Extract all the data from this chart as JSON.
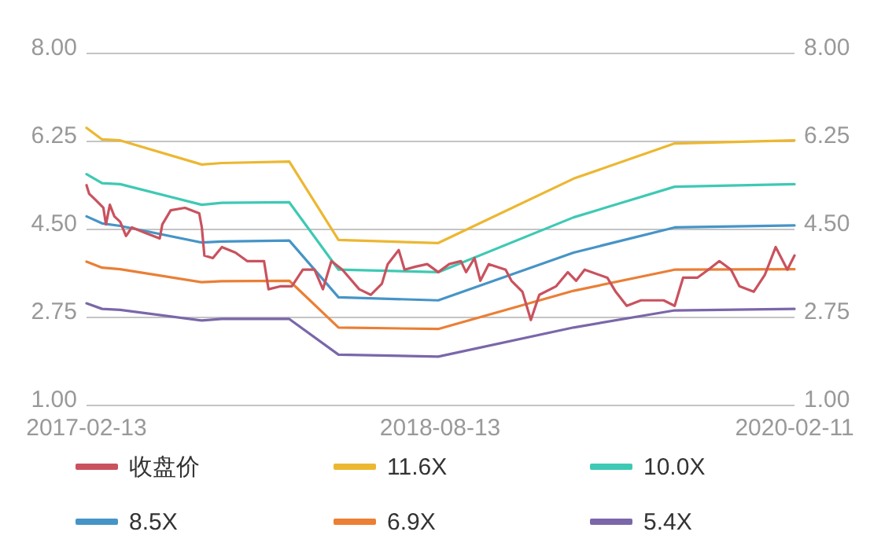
{
  "chart_data": {
    "type": "line",
    "x": [
      "2017-02-13",
      "2017-03-09",
      "2017-04-06",
      "2017-08-10",
      "2017-09-10",
      "2017-12-23",
      "2018-03-09",
      "2018-08-10",
      "2019-03-07",
      "2019-08-10",
      "2020-02-11"
    ],
    "series": [
      {
        "name": "收盘价",
        "color": "#c9525e",
        "x": [
          "2017-02-13",
          "2017-02-17",
          "2017-02-26",
          "2017-03-11",
          "2017-03-15",
          "2017-03-21",
          "2017-03-28",
          "2017-04-06",
          "2017-04-15",
          "2017-04-24",
          "2017-05-15",
          "2017-06-06",
          "2017-06-10",
          "2017-06-23",
          "2017-07-15",
          "2017-08-06",
          "2017-08-10",
          "2017-08-14",
          "2017-08-27",
          "2017-09-10",
          "2017-10-01",
          "2017-10-19",
          "2017-11-14",
          "2017-11-21",
          "2017-12-10",
          "2017-12-27",
          "2018-01-13",
          "2018-01-31",
          "2018-02-13",
          "2018-02-26",
          "2018-03-15",
          "2018-04-10",
          "2018-04-28",
          "2018-05-15",
          "2018-05-24",
          "2018-06-10",
          "2018-06-19",
          "2018-07-06",
          "2018-07-24",
          "2018-08-10",
          "2018-08-27",
          "2018-09-14",
          "2018-09-22",
          "2018-10-05",
          "2018-10-14",
          "2018-10-27",
          "2018-11-22",
          "2018-12-01",
          "2018-12-18",
          "2018-12-31",
          "2019-01-13",
          "2019-02-08",
          "2019-02-26",
          "2019-03-11",
          "2019-03-24",
          "2019-04-28",
          "2019-05-11",
          "2019-05-28",
          "2019-06-19",
          "2019-07-24",
          "2019-08-10",
          "2019-08-23",
          "2019-09-14",
          "2019-10-01",
          "2019-10-18",
          "2019-11-05",
          "2019-11-18",
          "2019-12-10",
          "2019-12-27",
          "2020-01-13",
          "2020-01-31",
          "2020-02-11"
        ],
        "values": [
          5.38,
          5.21,
          5.1,
          4.93,
          4.6,
          4.99,
          4.76,
          4.65,
          4.37,
          4.54,
          4.43,
          4.32,
          4.6,
          4.88,
          4.93,
          4.82,
          4.54,
          3.98,
          3.93,
          4.15,
          4.04,
          3.87,
          3.87,
          3.31,
          3.37,
          3.37,
          3.7,
          3.7,
          3.31,
          3.87,
          3.7,
          3.31,
          3.2,
          3.42,
          3.81,
          4.09,
          3.7,
          3.76,
          3.81,
          3.65,
          3.81,
          3.87,
          3.65,
          3.93,
          3.48,
          3.81,
          3.7,
          3.48,
          3.26,
          2.7,
          3.2,
          3.37,
          3.65,
          3.48,
          3.7,
          3.54,
          3.26,
          2.98,
          3.09,
          3.09,
          2.98,
          3.54,
          3.54,
          3.7,
          3.87,
          3.7,
          3.37,
          3.26,
          3.59,
          4.15,
          3.7,
          3.98
        ]
      },
      {
        "name": "11.6X",
        "color": "#ecb731",
        "values": [
          6.52,
          6.29,
          6.27,
          5.79,
          5.82,
          5.85,
          4.29,
          4.23,
          5.51,
          6.21,
          6.27
        ]
      },
      {
        "name": "10.0X",
        "color": "#3ec9b4",
        "values": [
          5.6,
          5.42,
          5.4,
          4.99,
          5.03,
          5.04,
          3.7,
          3.65,
          4.74,
          5.35,
          5.4
        ]
      },
      {
        "name": "8.5X",
        "color": "#4694c7",
        "values": [
          4.76,
          4.62,
          4.57,
          4.24,
          4.26,
          4.28,
          3.15,
          3.09,
          4.04,
          4.54,
          4.58
        ]
      },
      {
        "name": "6.9X",
        "color": "#ea7f35",
        "values": [
          3.86,
          3.74,
          3.71,
          3.45,
          3.47,
          3.48,
          2.55,
          2.52,
          3.28,
          3.7,
          3.71
        ]
      },
      {
        "name": "5.4X",
        "color": "#7a67a9",
        "values": [
          3.03,
          2.92,
          2.9,
          2.69,
          2.72,
          2.72,
          2.01,
          1.97,
          2.55,
          2.89,
          2.92
        ]
      }
    ],
    "xlim": [
      "2017-02-13",
      "2020-02-11"
    ],
    "xticks": [
      {
        "value": "2017-02-13",
        "label": "2017-02-13"
      },
      {
        "value": "2018-08-13",
        "label": "2018-08-13"
      },
      {
        "value": "2020-02-11",
        "label": "2020-02-11"
      }
    ],
    "ylim": [
      1,
      8
    ],
    "yticks": [
      {
        "value": 1,
        "label": "1.00"
      },
      {
        "value": 2.75,
        "label": "2.75"
      },
      {
        "value": 4.5,
        "label": "4.50"
      },
      {
        "value": 6.25,
        "label": "6.25"
      },
      {
        "value": 8,
        "label": "8.00"
      }
    ],
    "y2lim": [
      1,
      8
    ],
    "y2ticks": [
      {
        "value": 1,
        "label": "1.00"
      },
      {
        "value": 2.75,
        "label": "2.75"
      },
      {
        "value": 4.5,
        "label": "4.50"
      },
      {
        "value": 6.25,
        "label": "6.25"
      },
      {
        "value": 8,
        "label": "8.00"
      }
    ],
    "grid": "y",
    "legend": "bottom",
    "marker": "none",
    "line_style": "solid"
  }
}
